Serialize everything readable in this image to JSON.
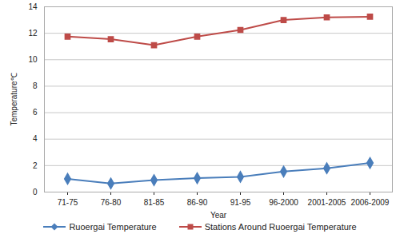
{
  "chart_data": {
    "type": "line",
    "x_label": "Year",
    "y_label": "Temperature℃",
    "categories": [
      "71-75",
      "76-80",
      "81-85",
      "86-90",
      "91-95",
      "96-2000",
      "2001-2005",
      "2006-2009"
    ],
    "series": [
      {
        "name": "Ruoergai Temperature",
        "color": "#4a7ebb",
        "marker": "diamond",
        "line_style": "solid",
        "values": [
          1.0,
          0.65,
          0.9,
          1.05,
          1.15,
          1.55,
          1.8,
          2.2
        ]
      },
      {
        "name": "Stations Around Ruoergai Temperature",
        "color": "#be4b48",
        "marker": "square",
        "line_style": "solid",
        "values": [
          11.75,
          11.55,
          11.1,
          11.75,
          12.25,
          13.0,
          13.2,
          13.25
        ]
      }
    ],
    "ylim": [
      0,
      14
    ],
    "yticks": [
      0,
      2,
      4,
      6,
      8,
      10,
      12,
      14
    ],
    "grid": true,
    "legend": "bottom"
  }
}
